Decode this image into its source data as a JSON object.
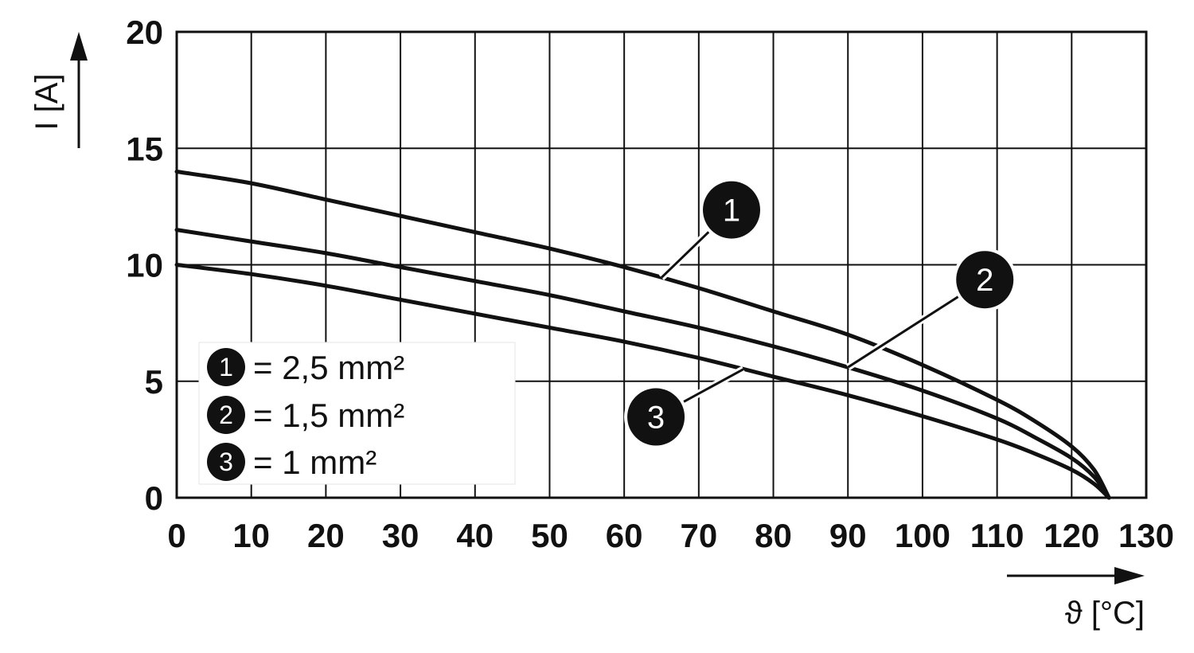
{
  "chart_data": {
    "type": "line",
    "xlabel": "ϑ [°C]",
    "ylabel": "I [A]",
    "xlim": [
      0,
      130
    ],
    "ylim": [
      0,
      20
    ],
    "x_ticks": [
      "0",
      "10",
      "20",
      "30",
      "40",
      "50",
      "60",
      "70",
      "80",
      "90",
      "100",
      "110",
      "120",
      "130"
    ],
    "y_ticks": [
      "0",
      "5",
      "10",
      "15",
      "20"
    ],
    "grid": true,
    "legend_position": "bottom-left",
    "series": [
      {
        "name": "= 2,5 mm²",
        "marker": "1",
        "x": [
          0,
          10,
          20,
          30,
          40,
          50,
          60,
          70,
          80,
          90,
          100,
          110,
          115,
          120,
          123,
          125
        ],
        "y": [
          14,
          13.5,
          12.8,
          12.1,
          11.4,
          10.7,
          9.9,
          9.0,
          8.0,
          7.0,
          5.7,
          4.2,
          3.3,
          2.2,
          1.2,
          0
        ]
      },
      {
        "name": "= 1,5 mm²",
        "marker": "2",
        "x": [
          0,
          10,
          20,
          30,
          40,
          50,
          60,
          70,
          80,
          90,
          100,
          110,
          115,
          120,
          123,
          125
        ],
        "y": [
          11.5,
          11.0,
          10.5,
          9.9,
          9.3,
          8.7,
          8.0,
          7.3,
          6.5,
          5.6,
          4.6,
          3.4,
          2.6,
          1.7,
          0.9,
          0
        ]
      },
      {
        "name": "= 1 mm²",
        "marker": "3",
        "x": [
          0,
          10,
          20,
          30,
          40,
          50,
          60,
          70,
          80,
          90,
          100,
          110,
          115,
          120,
          123,
          125
        ],
        "y": [
          10,
          9.6,
          9.1,
          8.5,
          7.9,
          7.3,
          6.7,
          6.0,
          5.2,
          4.4,
          3.5,
          2.5,
          1.9,
          1.2,
          0.6,
          0
        ]
      }
    ],
    "callouts": [
      {
        "marker": "1",
        "series": 0,
        "at_x": 65
      },
      {
        "marker": "2",
        "series": 1,
        "at_x": 90
      },
      {
        "marker": "3",
        "series": 2,
        "at_x": 76
      }
    ]
  }
}
